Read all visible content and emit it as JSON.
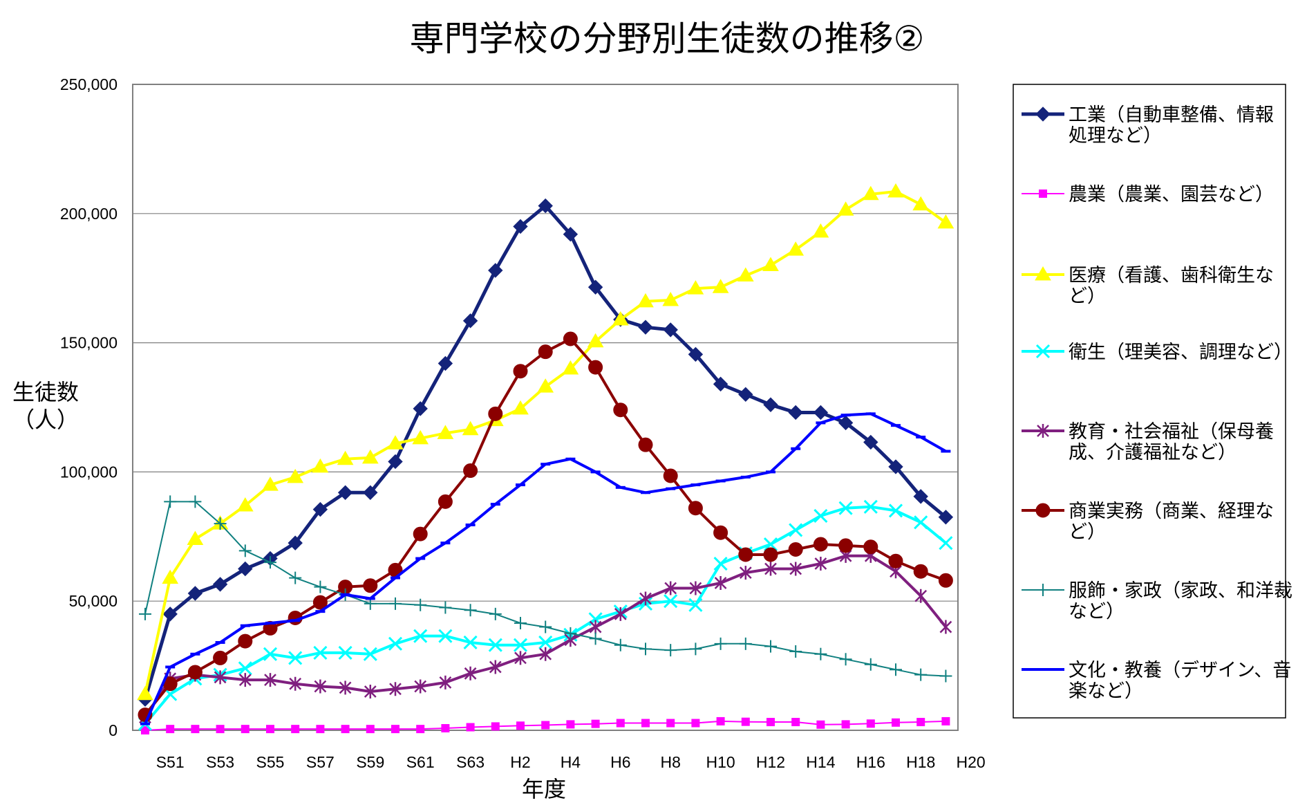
{
  "chart_data": {
    "type": "line",
    "title": "専門学校の分野別生徒数の推移②",
    "xlabel": "年度",
    "ylabel_line1": "生徒数",
    "ylabel_line2": "（人）",
    "ylim": [
      0,
      250000
    ],
    "y_ticks": [
      "0",
      "50,000",
      "100,000",
      "150,000",
      "200,000",
      "250,000"
    ],
    "y_tick_values": [
      0,
      50000,
      100000,
      150000,
      200000,
      250000
    ],
    "x_ticks": [
      "S51",
      "S53",
      "S55",
      "S57",
      "S59",
      "S61",
      "S63",
      "H2",
      "H4",
      "H6",
      "H8",
      "H10",
      "H12",
      "H14",
      "H16",
      "H18",
      "H20"
    ],
    "grid": true,
    "legend_position": "right",
    "categories": [
      "S50",
      "S51",
      "S52",
      "S53",
      "S54",
      "S55",
      "S56",
      "S57",
      "S58",
      "S59",
      "S60",
      "S61",
      "S62",
      "S63",
      "H1",
      "H2",
      "H3",
      "H4",
      "H5",
      "H6",
      "H7",
      "H8",
      "H9",
      "H10",
      "H11",
      "H12",
      "H13",
      "H14",
      "H15",
      "H16",
      "H17",
      "H18",
      "H19",
      "H20"
    ],
    "series": [
      {
        "name": "工業",
        "legend_line1": "工業（自動車整備、情報",
        "legend_line2": "処理など）",
        "color": "#14237a",
        "marker": "diamond",
        "values": [
          12000,
          45000,
          53000,
          56500,
          62500,
          66500,
          72500,
          85500,
          92000,
          92000,
          104000,
          124500,
          142000,
          158500,
          178000,
          195000,
          203000,
          192000,
          171500,
          159000,
          156000,
          155000,
          145500,
          134000,
          130000,
          126000,
          123000,
          123000,
          119000,
          111500,
          102000,
          90500,
          82500,
          null
        ]
      },
      {
        "name": "農業",
        "legend_line1": "農業（農業、園芸など）",
        "legend_line2": "",
        "color": "#ff00ff",
        "marker": "square",
        "values": [
          0,
          500,
          500,
          500,
          500,
          500,
          500,
          500,
          500,
          500,
          500,
          500,
          800,
          1200,
          1500,
          1800,
          2000,
          2300,
          2500,
          2800,
          2800,
          2800,
          2800,
          3500,
          3300,
          3200,
          3200,
          2200,
          2300,
          2600,
          3000,
          3200,
          3500,
          null
        ]
      },
      {
        "name": "医療",
        "legend_line1": "医療（看護、歯科衛生な",
        "legend_line2": "ど）",
        "color": "#ffff00",
        "marker": "triangle",
        "values": [
          14000,
          59000,
          74000,
          80000,
          87000,
          95000,
          98000,
          102000,
          105000,
          105500,
          111000,
          113000,
          115000,
          116500,
          120000,
          124500,
          133000,
          140000,
          150500,
          159000,
          166000,
          166500,
          171000,
          171500,
          176000,
          180000,
          186000,
          193000,
          201500,
          207500,
          208500,
          203500,
          196500,
          null
        ]
      },
      {
        "name": "衛生",
        "legend_line1": "衛生（理美容、調理など）",
        "legend_line2": "",
        "color": "#00ffff",
        "marker": "x",
        "values": [
          2500,
          14000,
          20000,
          21500,
          24000,
          29500,
          28000,
          30000,
          30000,
          29500,
          33500,
          36500,
          36500,
          34000,
          33000,
          33000,
          34000,
          37000,
          43000,
          46000,
          49000,
          50000,
          48500,
          64500,
          68500,
          72000,
          77500,
          83000,
          86000,
          86500,
          85000,
          80500,
          72500,
          null
        ]
      },
      {
        "name": "教育・社会福祉",
        "legend_line1": "教育・社会福祉（保母養",
        "legend_line2": "成、介護福祉など）",
        "color": "#7f1f7f",
        "marker": "star",
        "values": [
          5000,
          20000,
          21500,
          20500,
          19500,
          19500,
          18000,
          17000,
          16500,
          15000,
          16000,
          17000,
          18500,
          22000,
          24500,
          28000,
          29500,
          35000,
          40000,
          45000,
          51000,
          55000,
          55000,
          57000,
          61000,
          62500,
          62500,
          64500,
          67500,
          67500,
          61500,
          52000,
          40000,
          null
        ]
      },
      {
        "name": "商業実務",
        "legend_line1": "商業実務（商業、経理な",
        "legend_line2": "ど）",
        "color": "#8b0000",
        "marker": "circle",
        "values": [
          6000,
          18000,
          22500,
          28000,
          34500,
          39500,
          43500,
          49500,
          55500,
          56000,
          62000,
          76000,
          88500,
          100500,
          122500,
          139000,
          146500,
          151500,
          140500,
          124000,
          110500,
          98500,
          86000,
          76500,
          68000,
          68000,
          70000,
          72000,
          71500,
          71000,
          65500,
          61500,
          58000,
          null
        ]
      },
      {
        "name": "服飾・家政",
        "legend_line1": "服飾・家政（家政、和洋裁",
        "legend_line2": "など）",
        "color": "#108080",
        "marker": "plus",
        "values": [
          45000,
          88500,
          88500,
          80000,
          69500,
          65000,
          59000,
          55500,
          52500,
          49000,
          49000,
          48500,
          47500,
          46500,
          45000,
          41500,
          40000,
          37500,
          35500,
          33000,
          31500,
          31000,
          31500,
          33500,
          33500,
          32500,
          30500,
          29500,
          27500,
          25500,
          23500,
          21500,
          21000,
          null
        ]
      },
      {
        "name": "文化・教養",
        "legend_line1": "文化・教養（デザイン、音",
        "legend_line2": "楽など）",
        "color": "#0000ff",
        "marker": "hline",
        "values": [
          2500,
          24500,
          29500,
          34000,
          40500,
          41500,
          42500,
          46000,
          52500,
          51000,
          59000,
          66500,
          72500,
          79500,
          87500,
          95000,
          103000,
          105000,
          100000,
          94000,
          92000,
          93500,
          95000,
          96500,
          98000,
          100000,
          109000,
          119000,
          122000,
          122500,
          118000,
          113500,
          108000,
          null
        ]
      }
    ]
  }
}
